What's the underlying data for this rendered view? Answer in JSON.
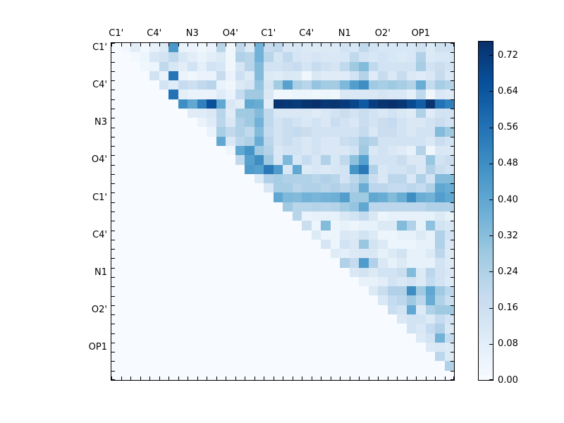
{
  "figure": {
    "background": "#ffffff"
  },
  "chart_data": {
    "type": "heatmap",
    "title": "",
    "xlabel": "",
    "ylabel": "",
    "n_rows": 36,
    "n_cols": 36,
    "grid": false,
    "triangle": "upper",
    "x_tick_labels": [
      "C1'",
      "C4'",
      "N3",
      "O4'",
      "C1'",
      "C4'",
      "N1",
      "O2'",
      "OP1"
    ],
    "y_tick_labels": [
      "C1'",
      "C4'",
      "N3",
      "O4'",
      "C1'",
      "C4'",
      "N1",
      "O2'",
      "OP1"
    ],
    "tick_step": 4,
    "vmin": 0.0,
    "vmax": 0.75,
    "colormap": "Blues",
    "colormap_anchors": [
      [
        0.0,
        "#f7fbff"
      ],
      [
        0.125,
        "#deebf7"
      ],
      [
        0.25,
        "#c6dbef"
      ],
      [
        0.375,
        "#9ecae1"
      ],
      [
        0.5,
        "#6baed6"
      ],
      [
        0.625,
        "#4292c6"
      ],
      [
        0.75,
        "#2171b5"
      ],
      [
        0.875,
        "#08519c"
      ],
      [
        1.0,
        "#08306b"
      ]
    ],
    "colorbar": {
      "position": "right",
      "tick_labels": [
        "0.00",
        "0.08",
        "0.16",
        "0.24",
        "0.32",
        "0.40",
        "0.48",
        "0.56",
        "0.64",
        "0.72"
      ],
      "tick_values": [
        0.0,
        0.08,
        0.16,
        0.24,
        0.32,
        0.4,
        0.48,
        0.56,
        0.64,
        0.72
      ]
    },
    "matrix": [
      [
        0,
        0.02,
        0.08,
        0.02,
        0.06,
        0.1,
        0.45,
        0.05,
        0.05,
        0.03,
        0.05,
        0.22,
        0.03,
        0.2,
        0.1,
        0.36,
        0.18,
        0.2,
        0.12,
        0.12,
        0.1,
        0.1,
        0.1,
        0.1,
        0.14,
        0.12,
        0.2,
        0.14,
        0.12,
        0.12,
        0.12,
        0.12,
        0.15,
        0.1,
        0.15,
        0.15
      ],
      [
        0,
        0,
        0.02,
        0.04,
        0.12,
        0.14,
        0.2,
        0.12,
        0.08,
        0.05,
        0.08,
        0.1,
        0.03,
        0.24,
        0.22,
        0.36,
        0.22,
        0.13,
        0.2,
        0.13,
        0.11,
        0.13,
        0.11,
        0.11,
        0.12,
        0.2,
        0.14,
        0.12,
        0.14,
        0.12,
        0.1,
        0.12,
        0.24,
        0.1,
        0.12,
        0.12
      ],
      [
        0,
        0,
        0,
        0.03,
        0.04,
        0.2,
        0.12,
        0.08,
        0.14,
        0.07,
        0.14,
        0.12,
        0.03,
        0.13,
        0.22,
        0.33,
        0.14,
        0.14,
        0.16,
        0.18,
        0.13,
        0.18,
        0.15,
        0.13,
        0.2,
        0.28,
        0.33,
        0.2,
        0.14,
        0.14,
        0.14,
        0.14,
        0.26,
        0.14,
        0.17,
        0.14
      ],
      [
        0,
        0,
        0,
        0,
        0.14,
        0.05,
        0.55,
        0.05,
        0.03,
        0.05,
        0.05,
        0.18,
        0.05,
        0.16,
        0.1,
        0.33,
        0.1,
        0.09,
        0.11,
        0.1,
        0.03,
        0.11,
        0.09,
        0.09,
        0.09,
        0.14,
        0.23,
        0.09,
        0.18,
        0.11,
        0.18,
        0.11,
        0.09,
        0.11,
        0.18,
        0.11
      ],
      [
        0,
        0,
        0,
        0,
        0,
        0.14,
        0.09,
        0.18,
        0.16,
        0.2,
        0.22,
        0.05,
        0.03,
        0.1,
        0.13,
        0.3,
        0.13,
        0.27,
        0.42,
        0.25,
        0.22,
        0.3,
        0.27,
        0.27,
        0.34,
        0.43,
        0.48,
        0.28,
        0.26,
        0.28,
        0.26,
        0.23,
        0.38,
        0.19,
        0.26,
        0.23
      ],
      [
        0,
        0,
        0,
        0,
        0,
        0,
        0.56,
        0.07,
        0.05,
        0.05,
        0.05,
        0.09,
        0.05,
        0.19,
        0.28,
        0.28,
        0.11,
        0.03,
        0.03,
        0.04,
        0.04,
        0.03,
        0.04,
        0.03,
        0.11,
        0.11,
        0.11,
        0.11,
        0.13,
        0.11,
        0.11,
        0.07,
        0.2,
        0.03,
        0.11,
        0.09
      ],
      [
        0,
        0,
        0,
        0,
        0,
        0,
        0,
        0.48,
        0.4,
        0.52,
        0.66,
        0.4,
        0.11,
        0.08,
        0.4,
        0.38,
        0.08,
        0.74,
        0.73,
        0.72,
        0.74,
        0.75,
        0.73,
        0.74,
        0.72,
        0.69,
        0.63,
        0.71,
        0.74,
        0.75,
        0.73,
        0.68,
        0.62,
        0.74,
        0.56,
        0.52
      ],
      [
        0,
        0,
        0,
        0,
        0,
        0,
        0,
        0,
        0.09,
        0.09,
        0.11,
        0.22,
        0.09,
        0.28,
        0.28,
        0.33,
        0.2,
        0.11,
        0.11,
        0.11,
        0.11,
        0.09,
        0.11,
        0.14,
        0.17,
        0.14,
        0.17,
        0.14,
        0.11,
        0.14,
        0.11,
        0.09,
        0.24,
        0.09,
        0.14,
        0.14
      ],
      [
        0,
        0,
        0,
        0,
        0,
        0,
        0,
        0,
        0,
        0.05,
        0.09,
        0.21,
        0.11,
        0.24,
        0.28,
        0.36,
        0.2,
        0.14,
        0.17,
        0.14,
        0.11,
        0.14,
        0.11,
        0.17,
        0.14,
        0.11,
        0.17,
        0.14,
        0.17,
        0.19,
        0.14,
        0.11,
        0.11,
        0.14,
        0.17,
        0.14
      ],
      [
        0,
        0,
        0,
        0,
        0,
        0,
        0,
        0,
        0,
        0,
        0.05,
        0.26,
        0.2,
        0.24,
        0.2,
        0.33,
        0.19,
        0.14,
        0.17,
        0.19,
        0.17,
        0.14,
        0.14,
        0.14,
        0.14,
        0.14,
        0.19,
        0.11,
        0.17,
        0.17,
        0.14,
        0.11,
        0.14,
        0.14,
        0.33,
        0.28
      ],
      [
        0,
        0,
        0,
        0,
        0,
        0,
        0,
        0,
        0,
        0,
        0,
        0.4,
        0.11,
        0.21,
        0.24,
        0.38,
        0.21,
        0.14,
        0.17,
        0.14,
        0.11,
        0.14,
        0.11,
        0.11,
        0.17,
        0.19,
        0.26,
        0.23,
        0.14,
        0.14,
        0.14,
        0.14,
        0.14,
        0.11,
        0.17,
        0.14
      ],
      [
        0,
        0,
        0,
        0,
        0,
        0,
        0,
        0,
        0,
        0,
        0,
        0,
        0.03,
        0.4,
        0.46,
        0.28,
        0.23,
        0.11,
        0.14,
        0.14,
        0.11,
        0.14,
        0.11,
        0.11,
        0.11,
        0.14,
        0.28,
        0.11,
        0.14,
        0.11,
        0.09,
        0.06,
        0.23,
        0.03,
        0.11,
        0.11
      ],
      [
        0,
        0,
        0,
        0,
        0,
        0,
        0,
        0,
        0,
        0,
        0,
        0,
        0,
        0.2,
        0.42,
        0.48,
        0.28,
        0.12,
        0.34,
        0.12,
        0.18,
        0.12,
        0.24,
        0.12,
        0.2,
        0.31,
        0.42,
        0.14,
        0.14,
        0.14,
        0.17,
        0.11,
        0.11,
        0.29,
        0.14,
        0.17
      ],
      [
        0,
        0,
        0,
        0,
        0,
        0,
        0,
        0,
        0,
        0,
        0,
        0,
        0,
        0,
        0.44,
        0.42,
        0.54,
        0.44,
        0.12,
        0.4,
        0.1,
        0.12,
        0.1,
        0.12,
        0.14,
        0.46,
        0.54,
        0.24,
        0.11,
        0.14,
        0.14,
        0.17,
        0.11,
        0.24,
        0.17,
        0.14
      ],
      [
        0,
        0,
        0,
        0,
        0,
        0,
        0,
        0,
        0,
        0,
        0,
        0,
        0,
        0,
        0,
        0.1,
        0.24,
        0.26,
        0.24,
        0.24,
        0.24,
        0.22,
        0.24,
        0.22,
        0.14,
        0.21,
        0.28,
        0.17,
        0.11,
        0.21,
        0.21,
        0.11,
        0.24,
        0.14,
        0.33,
        0.33
      ],
      [
        0,
        0,
        0,
        0,
        0,
        0,
        0,
        0,
        0,
        0,
        0,
        0,
        0,
        0,
        0,
        0,
        0.12,
        0.26,
        0.26,
        0.22,
        0.24,
        0.24,
        0.22,
        0.24,
        0.21,
        0.24,
        0.38,
        0.21,
        0.21,
        0.19,
        0.19,
        0.21,
        0.19,
        0.24,
        0.4,
        0.38
      ],
      [
        0,
        0,
        0,
        0,
        0,
        0,
        0,
        0,
        0,
        0,
        0,
        0,
        0,
        0,
        0,
        0,
        0,
        0.4,
        0.34,
        0.33,
        0.36,
        0.35,
        0.36,
        0.37,
        0.43,
        0.28,
        0.28,
        0.4,
        0.38,
        0.33,
        0.38,
        0.48,
        0.38,
        0.36,
        0.43,
        0.4
      ],
      [
        0,
        0,
        0,
        0,
        0,
        0,
        0,
        0,
        0,
        0,
        0,
        0,
        0,
        0,
        0,
        0,
        0,
        0,
        0.28,
        0.22,
        0.22,
        0.23,
        0.22,
        0.23,
        0.27,
        0.3,
        0.4,
        0.21,
        0.21,
        0.21,
        0.21,
        0.21,
        0.21,
        0.24,
        0.24,
        0.24
      ],
      [
        0,
        0,
        0,
        0,
        0,
        0,
        0,
        0,
        0,
        0,
        0,
        0,
        0,
        0,
        0,
        0,
        0,
        0,
        0,
        0.22,
        0.05,
        0.06,
        0.06,
        0.06,
        0.11,
        0.14,
        0.19,
        0.11,
        0.04,
        0.06,
        0.06,
        0.06,
        0.06,
        0.06,
        0.1,
        0.06
      ],
      [
        0,
        0,
        0,
        0,
        0,
        0,
        0,
        0,
        0,
        0,
        0,
        0,
        0,
        0,
        0,
        0,
        0,
        0,
        0,
        0,
        0.17,
        0.04,
        0.33,
        0.04,
        0.06,
        0.04,
        0.06,
        0.06,
        0.1,
        0.1,
        0.33,
        0.24,
        0.06,
        0.31,
        0.14,
        0.12
      ],
      [
        0,
        0,
        0,
        0,
        0,
        0,
        0,
        0,
        0,
        0,
        0,
        0,
        0,
        0,
        0,
        0,
        0,
        0,
        0,
        0,
        0,
        0.1,
        0.04,
        0.04,
        0.11,
        0.1,
        0.14,
        0.1,
        0.04,
        0.04,
        0.06,
        0.06,
        0.1,
        0.06,
        0.24,
        0.14
      ],
      [
        0,
        0,
        0,
        0,
        0,
        0,
        0,
        0,
        0,
        0,
        0,
        0,
        0,
        0,
        0,
        0,
        0,
        0,
        0,
        0,
        0,
        0,
        0.13,
        0.04,
        0.14,
        0.11,
        0.29,
        0.14,
        0.1,
        0.04,
        0.04,
        0.04,
        0.06,
        0.06,
        0.24,
        0.11
      ],
      [
        0,
        0,
        0,
        0,
        0,
        0,
        0,
        0,
        0,
        0,
        0,
        0,
        0,
        0,
        0,
        0,
        0,
        0,
        0,
        0,
        0,
        0,
        0,
        0.09,
        0.07,
        0.1,
        0.11,
        0.11,
        0.06,
        0.1,
        0.14,
        0.06,
        0.06,
        0.1,
        0.21,
        0.1
      ],
      [
        0,
        0,
        0,
        0,
        0,
        0,
        0,
        0,
        0,
        0,
        0,
        0,
        0,
        0,
        0,
        0,
        0,
        0,
        0,
        0,
        0,
        0,
        0,
        0,
        0.24,
        0.19,
        0.44,
        0.24,
        0.11,
        0.06,
        0.1,
        0.06,
        0.06,
        0.06,
        0.14,
        0.1
      ],
      [
        0,
        0,
        0,
        0,
        0,
        0,
        0,
        0,
        0,
        0,
        0,
        0,
        0,
        0,
        0,
        0,
        0,
        0,
        0,
        0,
        0,
        0,
        0,
        0,
        0,
        0.11,
        0.14,
        0.1,
        0.14,
        0.14,
        0.17,
        0.33,
        0.1,
        0.21,
        0.14,
        0.11
      ],
      [
        0,
        0,
        0,
        0,
        0,
        0,
        0,
        0,
        0,
        0,
        0,
        0,
        0,
        0,
        0,
        0,
        0,
        0,
        0,
        0,
        0,
        0,
        0,
        0,
        0,
        0,
        0.06,
        0.06,
        0.08,
        0.14,
        0.11,
        0.14,
        0.1,
        0.19,
        0.14,
        0.1
      ],
      [
        0,
        0,
        0,
        0,
        0,
        0,
        0,
        0,
        0,
        0,
        0,
        0,
        0,
        0,
        0,
        0,
        0,
        0,
        0,
        0,
        0,
        0,
        0,
        0,
        0,
        0,
        0,
        0.1,
        0.17,
        0.24,
        0.24,
        0.48,
        0.28,
        0.4,
        0.28,
        0.21
      ],
      [
        0,
        0,
        0,
        0,
        0,
        0,
        0,
        0,
        0,
        0,
        0,
        0,
        0,
        0,
        0,
        0,
        0,
        0,
        0,
        0,
        0,
        0,
        0,
        0,
        0,
        0,
        0,
        0,
        0.11,
        0.19,
        0.21,
        0.28,
        0.21,
        0.38,
        0.24,
        0.17
      ],
      [
        0,
        0,
        0,
        0,
        0,
        0,
        0,
        0,
        0,
        0,
        0,
        0,
        0,
        0,
        0,
        0,
        0,
        0,
        0,
        0,
        0,
        0,
        0,
        0,
        0,
        0,
        0,
        0,
        0,
        0.17,
        0.14,
        0.4,
        0.1,
        0.24,
        0.28,
        0.28
      ],
      [
        0,
        0,
        0,
        0,
        0,
        0,
        0,
        0,
        0,
        0,
        0,
        0,
        0,
        0,
        0,
        0,
        0,
        0,
        0,
        0,
        0,
        0,
        0,
        0,
        0,
        0,
        0,
        0,
        0,
        0,
        0.11,
        0.14,
        0.14,
        0.1,
        0.19,
        0.14
      ],
      [
        0,
        0,
        0,
        0,
        0,
        0,
        0,
        0,
        0,
        0,
        0,
        0,
        0,
        0,
        0,
        0,
        0,
        0,
        0,
        0,
        0,
        0,
        0,
        0,
        0,
        0,
        0,
        0,
        0,
        0,
        0,
        0.14,
        0.11,
        0.19,
        0.24,
        0.11
      ],
      [
        0,
        0,
        0,
        0,
        0,
        0,
        0,
        0,
        0,
        0,
        0,
        0,
        0,
        0,
        0,
        0,
        0,
        0,
        0,
        0,
        0,
        0,
        0,
        0,
        0,
        0,
        0,
        0,
        0,
        0,
        0,
        0,
        0.1,
        0.14,
        0.36,
        0.19
      ],
      [
        0,
        0,
        0,
        0,
        0,
        0,
        0,
        0,
        0,
        0,
        0,
        0,
        0,
        0,
        0,
        0,
        0,
        0,
        0,
        0,
        0,
        0,
        0,
        0,
        0,
        0,
        0,
        0,
        0,
        0,
        0,
        0,
        0,
        0.1,
        0.11,
        0.1
      ],
      [
        0,
        0,
        0,
        0,
        0,
        0,
        0,
        0,
        0,
        0,
        0,
        0,
        0,
        0,
        0,
        0,
        0,
        0,
        0,
        0,
        0,
        0,
        0,
        0,
        0,
        0,
        0,
        0,
        0,
        0,
        0,
        0,
        0,
        0,
        0.21,
        0.1
      ],
      [
        0,
        0,
        0,
        0,
        0,
        0,
        0,
        0,
        0,
        0,
        0,
        0,
        0,
        0,
        0,
        0,
        0,
        0,
        0,
        0,
        0,
        0,
        0,
        0,
        0,
        0,
        0,
        0,
        0,
        0,
        0,
        0,
        0,
        0,
        0,
        0.24
      ],
      [
        0,
        0,
        0,
        0,
        0,
        0,
        0,
        0,
        0,
        0,
        0,
        0,
        0,
        0,
        0,
        0,
        0,
        0,
        0,
        0,
        0,
        0,
        0,
        0,
        0,
        0,
        0,
        0,
        0,
        0,
        0,
        0,
        0,
        0,
        0,
        0
      ]
    ]
  }
}
